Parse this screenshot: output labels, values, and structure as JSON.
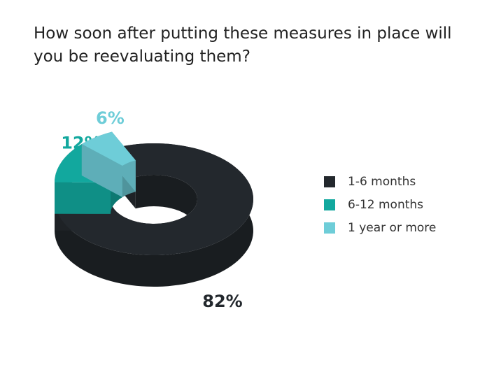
{
  "chart_data": {
    "type": "donut3d",
    "title": "How soon after putting these measures in place will you be reevaluating them?",
    "categories": [
      "1-6 months",
      "6-12 months",
      "1 year or more"
    ],
    "values": [
      82,
      12,
      6
    ],
    "value_labels": [
      "82%",
      "12%",
      "6%"
    ],
    "colors": [
      "#23282d",
      "#12a89e",
      "#6ecdd8"
    ],
    "exploded": [
      false,
      true,
      true
    ],
    "legend": "right"
  }
}
